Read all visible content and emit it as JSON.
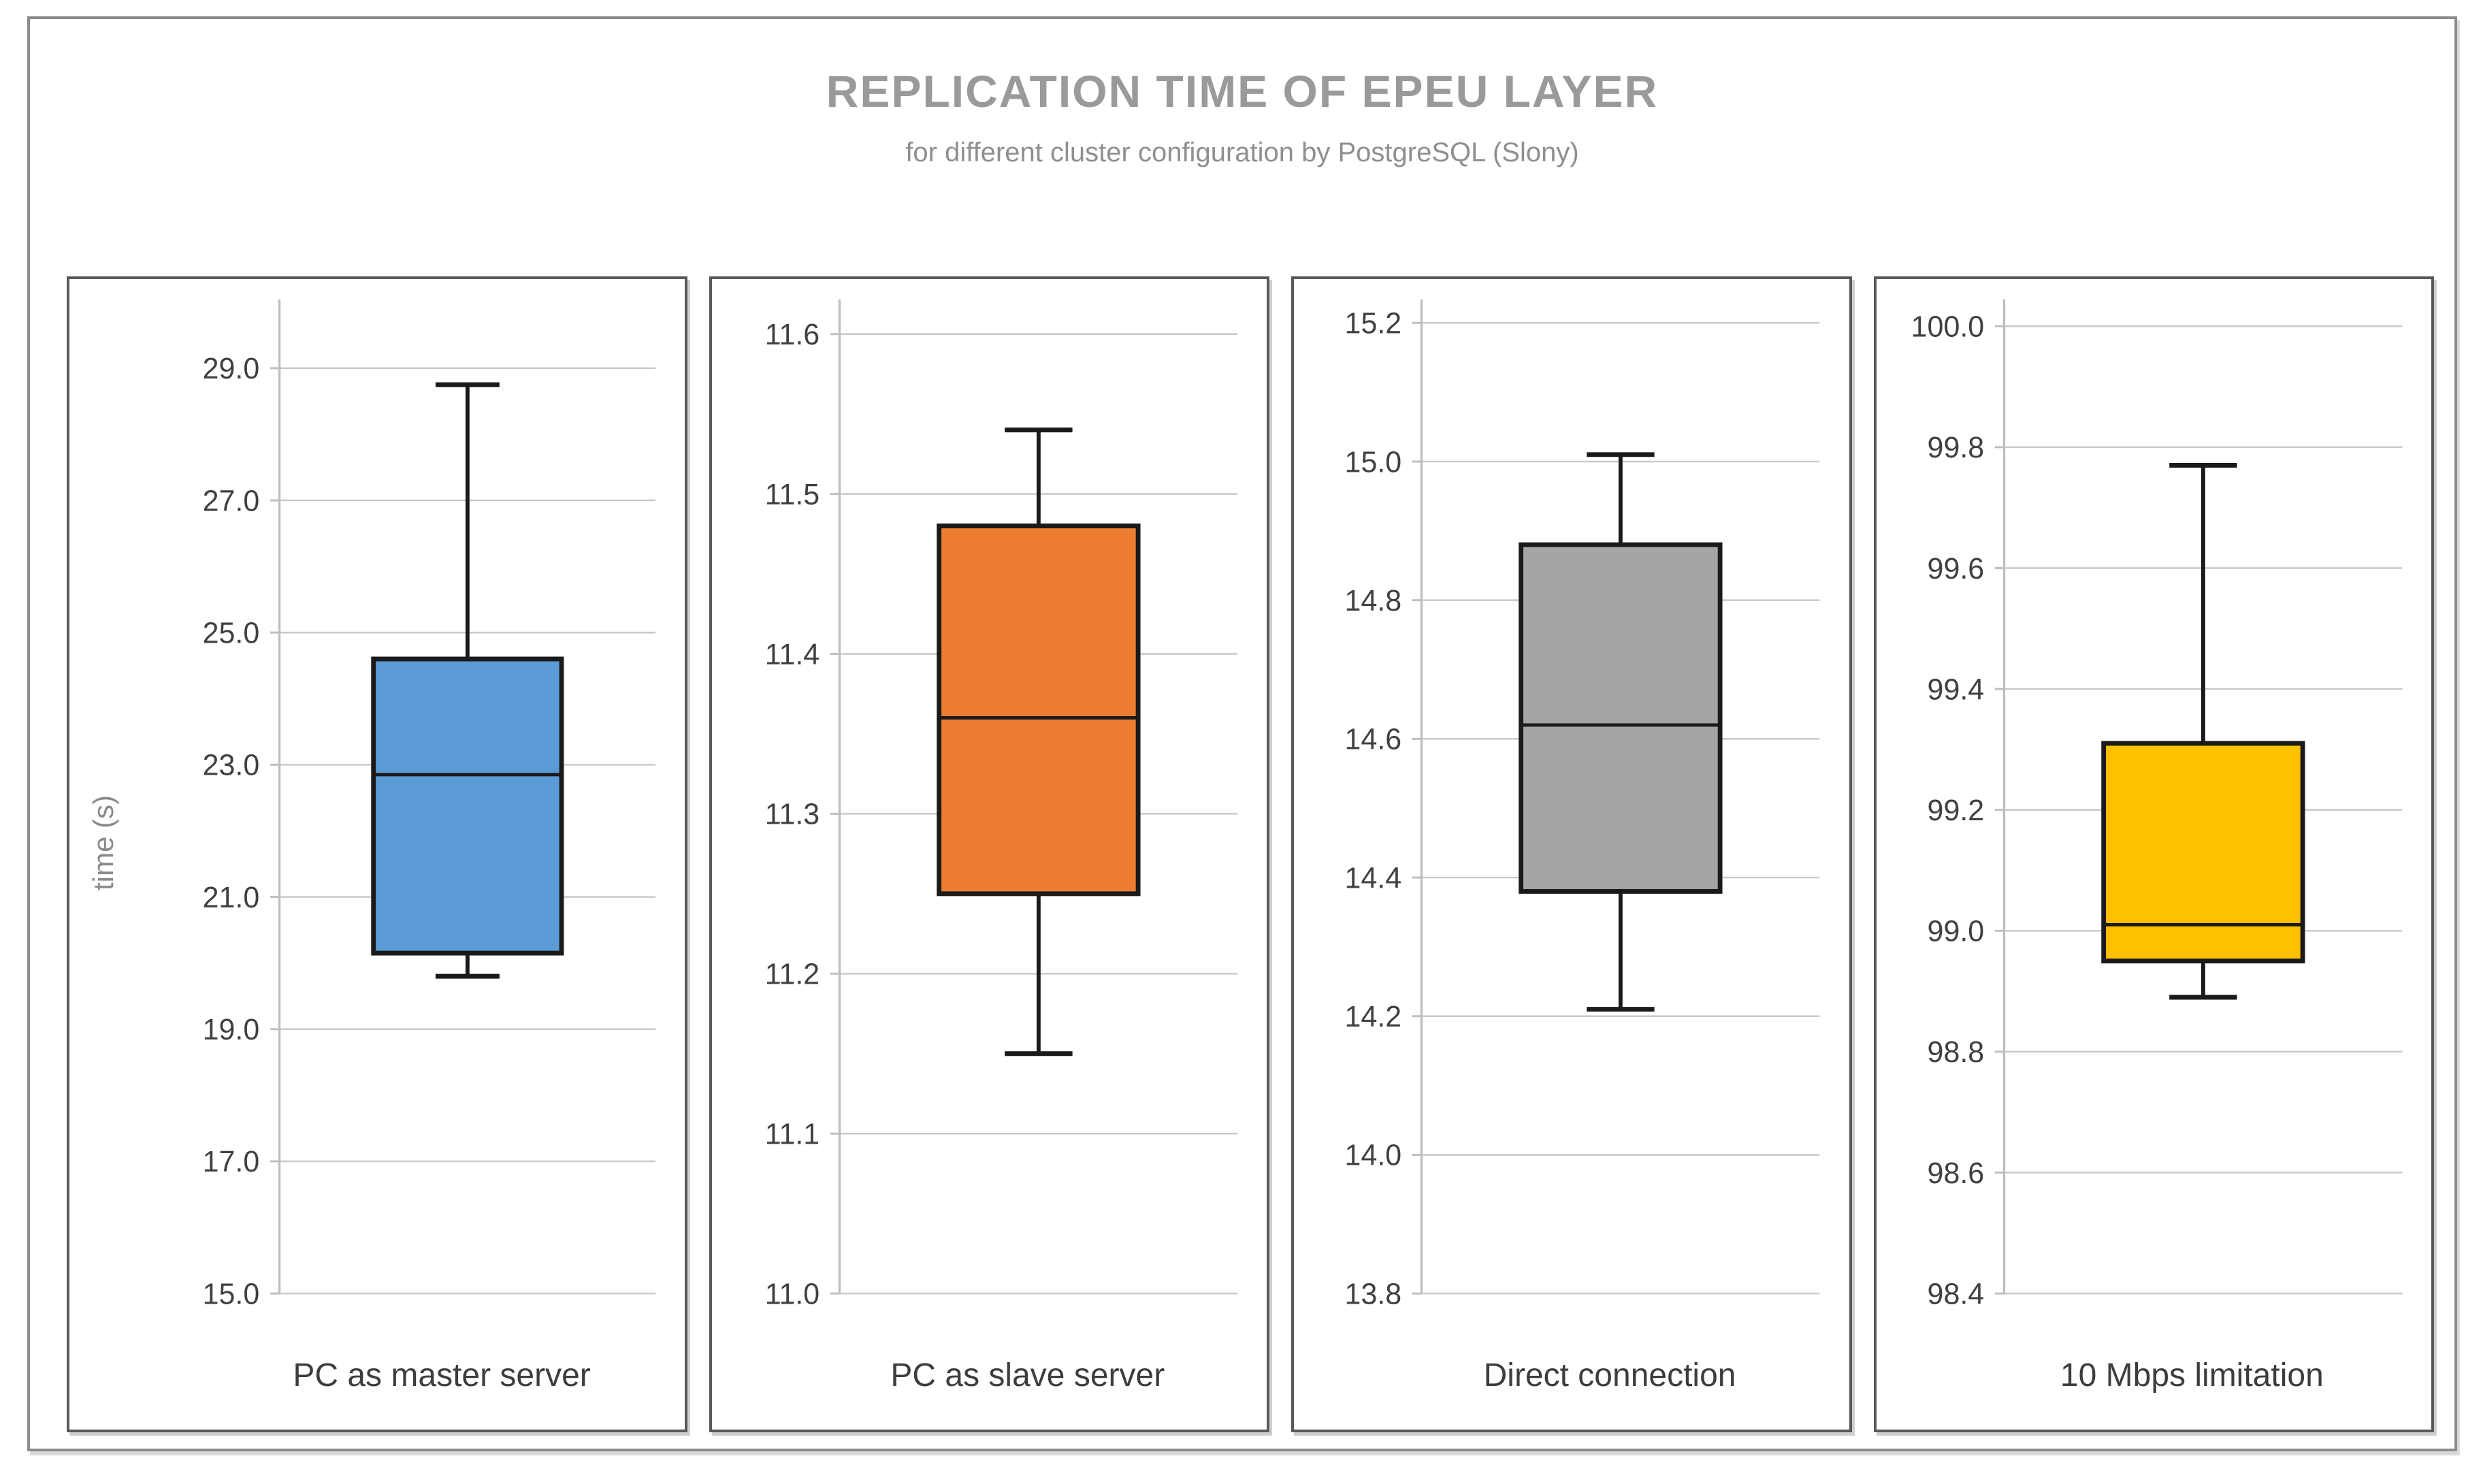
{
  "title": "REPLICATION TIME OF EPEU LAYER",
  "subtitle": "for different cluster configuration by PostgreSQL (Slony)",
  "ylabel": "time (s)",
  "colors": {
    "box_blue": "#5B9BD5",
    "box_orange": "#ED7D31",
    "box_gray": "#A5A5A5",
    "box_gold": "#FFC000",
    "box_stroke": "#1a1a1a",
    "gridline": "#c9c9c9",
    "axis_line": "#bfbfbf",
    "tick_text": "#404040",
    "panel_border": "#595959",
    "frame_border": "#8c8c8c",
    "title_text": "#9a9a9a"
  },
  "chart_data": [
    {
      "type": "box",
      "category": "PC as master server",
      "stats": {
        "min": 19.8,
        "q1": 20.15,
        "median": 22.85,
        "q3": 24.6,
        "max": 28.75
      },
      "ylim": [
        15.0,
        30.0
      ],
      "yticks": [
        15.0,
        17.0,
        19.0,
        21.0,
        23.0,
        25.0,
        27.0,
        29.0
      ],
      "tick_decimals": 1,
      "fill": "#5B9BD5",
      "grid": true,
      "legend": "none"
    },
    {
      "type": "box",
      "category": "PC as slave server",
      "stats": {
        "min": 11.15,
        "q1": 11.25,
        "median": 11.36,
        "q3": 11.48,
        "max": 11.54
      },
      "ylim": [
        11.0,
        11.62
      ],
      "yticks": [
        11.0,
        11.1,
        11.2,
        11.3,
        11.4,
        11.5,
        11.6
      ],
      "tick_decimals": 1,
      "fill": "#ED7D31",
      "grid": true,
      "legend": "none"
    },
    {
      "type": "box",
      "category": "Direct connection",
      "stats": {
        "min": 14.21,
        "q1": 14.38,
        "median": 14.62,
        "q3": 14.88,
        "max": 15.01
      },
      "ylim": [
        13.8,
        15.23
      ],
      "yticks": [
        13.8,
        14.0,
        14.2,
        14.4,
        14.6,
        14.8,
        15.0,
        15.2
      ],
      "tick_decimals": 1,
      "fill": "#A5A5A5",
      "grid": true,
      "legend": "none"
    },
    {
      "type": "box",
      "category": "10 Mbps limitation",
      "stats": {
        "min": 98.89,
        "q1": 98.95,
        "median": 99.01,
        "q3": 99.31,
        "max": 99.77
      },
      "ylim": [
        98.4,
        100.04
      ],
      "yticks": [
        98.4,
        98.6,
        98.8,
        99.0,
        99.2,
        99.4,
        99.6,
        99.8,
        100.0
      ],
      "tick_decimals": 1,
      "fill": "#FFC000",
      "grid": true,
      "legend": "none"
    }
  ]
}
